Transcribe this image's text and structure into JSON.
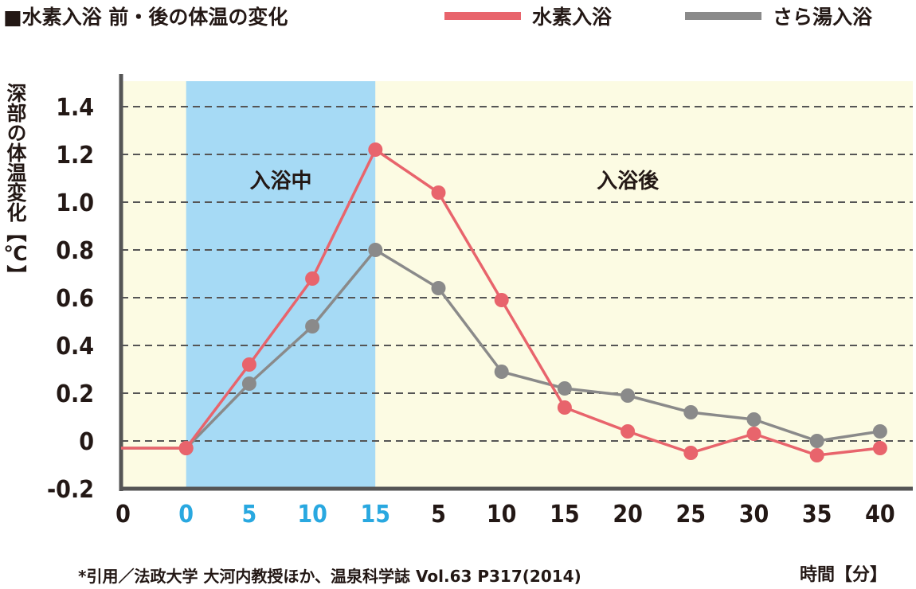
{
  "title": "■水素入浴 前・後の体温の変化",
  "legend": [
    {
      "label": "水素入浴",
      "color": "#e8646c"
    },
    {
      "label": "さら湯入浴",
      "color": "#8a8a8a"
    }
  ],
  "source_note": "*引用／法政大学 大河内教授ほか、温泉科学誌 Vol.63 P317(2014)",
  "x_unit": "時間【分】",
  "chart_data": {
    "type": "line",
    "ylabel": "深部の体温変化【℃】",
    "xlabel": "時間【分】",
    "ylim": [
      -0.2,
      1.5
    ],
    "yticks": [
      1.4,
      1.2,
      1.0,
      0.8,
      0.6,
      0.4,
      0.2,
      0,
      -0.2
    ],
    "ytick_labels": [
      "1.4",
      "1.2",
      "1.0",
      "0.8",
      "0.6",
      "0.4",
      "0.2",
      "0",
      "-0.2"
    ],
    "x_categories": [
      "0",
      "0",
      "5",
      "10",
      "15",
      "5",
      "10",
      "15",
      "20",
      "25",
      "30",
      "35",
      "40"
    ],
    "phases": [
      {
        "label": "",
        "from": 0,
        "to": 1,
        "color": "#fcfbe3"
      },
      {
        "label": "入浴中",
        "from": 1,
        "to": 4,
        "color": "#a6daf5",
        "tick_color": "#29a8e0"
      },
      {
        "label": "入浴後",
        "from": 4,
        "to": 12,
        "color": "#fcfbe3"
      }
    ],
    "grid": true,
    "legend_position": "top-right",
    "series": [
      {
        "name": "水素入浴",
        "color": "#e8646c",
        "values": [
          -0.03,
          -0.03,
          0.32,
          0.68,
          1.22,
          1.04,
          0.59,
          0.14,
          0.04,
          -0.05,
          0.03,
          -0.06,
          -0.03
        ]
      },
      {
        "name": "さら湯入浴",
        "color": "#8a8a8a",
        "values": [
          -0.03,
          -0.03,
          0.24,
          0.48,
          0.8,
          0.64,
          0.29,
          0.22,
          0.19,
          0.12,
          0.09,
          0.0,
          0.04
        ]
      }
    ]
  }
}
